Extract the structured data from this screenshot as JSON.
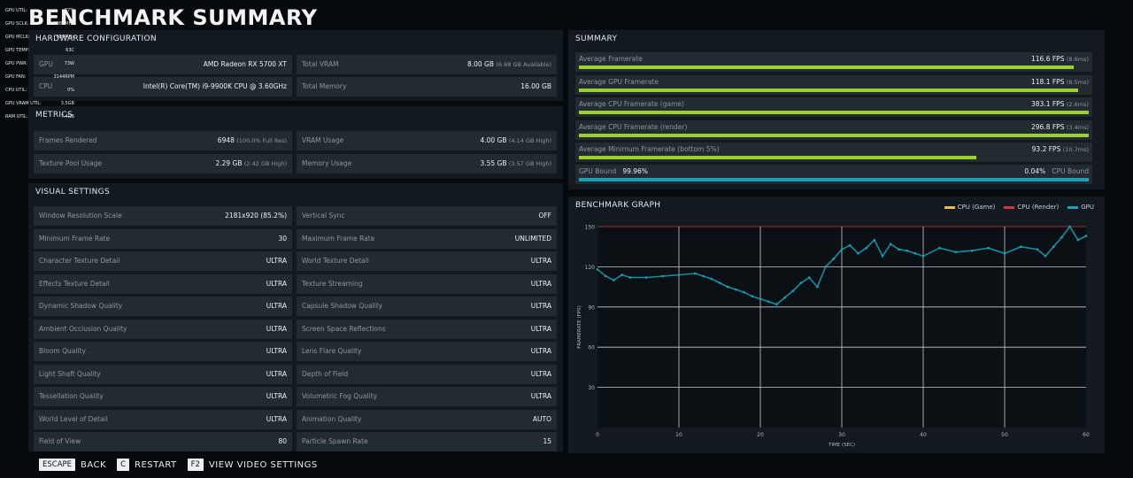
{
  "title": "BENCHMARK SUMMARY",
  "overlay": [
    {
      "label": "GPU UTIL:",
      "value": "87%"
    },
    {
      "label": "GPU SCLK:",
      "value": "1887MHz"
    },
    {
      "label": "GPU MCLK:",
      "value": "880MHz"
    },
    {
      "label": "GPU TEMP:",
      "value": "63C"
    },
    {
      "label": "GPU PWR:",
      "value": "73W"
    },
    {
      "label": "GPU FAN:",
      "value": "3144RPM"
    },
    {
      "label": "CPU UTIL:",
      "value": "0%"
    },
    {
      "label": "GPU VRAM UTIL:",
      "value": "3.5GB"
    },
    {
      "label": "RAM UTIL:",
      "value": "7.4GB"
    }
  ],
  "hardware": {
    "heading": "HARDWARE CONFIGURATION",
    "gpu_label": "GPU",
    "gpu_value": "AMD Radeon RX 5700 XT",
    "cpu_label": "CPU",
    "cpu_value": "Intel(R) Core(TM) i9-9900K CPU @ 3.60GHz",
    "vram_label": "Total VRAM",
    "vram_value": "8.00 GB",
    "vram_note": "(6.68 GB Available)",
    "mem_label": "Total Memory",
    "mem_value": "16.00 GB"
  },
  "metrics": {
    "heading": "METRICS",
    "frames_label": "Frames Rendered",
    "frames_value": "6948",
    "frames_note": "(100.0% Full Res)",
    "pool_label": "Texture Pool Usage",
    "pool_value": "2.29 GB",
    "pool_note": "(2.42 GB High)",
    "vram_label": "VRAM Usage",
    "vram_value": "4.00 GB",
    "vram_note": "(4.14 GB High)",
    "memory_label": "Memory Usage",
    "memory_value": "3.55 GB",
    "memory_note": "(3.57 GB High)"
  },
  "visual": {
    "heading": "VISUAL SETTINGS",
    "left": [
      {
        "label": "Window Resolution Scale",
        "value": "2181x920 (85.2%)"
      },
      {
        "label": "Minimum Frame Rate",
        "value": "30"
      },
      {
        "label": "Character Texture Detail",
        "value": "ULTRA"
      },
      {
        "label": "Effects Texture Detail",
        "value": "ULTRA"
      },
      {
        "label": "Dynamic Shadow Quality",
        "value": "ULTRA"
      },
      {
        "label": "Ambient Occlusion Quality",
        "value": "ULTRA"
      },
      {
        "label": "Bloom Quality",
        "value": "ULTRA"
      },
      {
        "label": "Light Shaft Quality",
        "value": "ULTRA"
      },
      {
        "label": "Tessellation Quality",
        "value": "ULTRA"
      },
      {
        "label": "World Level of Detail",
        "value": "ULTRA"
      },
      {
        "label": "Field of View",
        "value": "80"
      }
    ],
    "right": [
      {
        "label": "Vertical Sync",
        "value": "OFF"
      },
      {
        "label": "Maximum Frame Rate",
        "value": "UNLIMITED"
      },
      {
        "label": "World Texture Detail",
        "value": "ULTRA"
      },
      {
        "label": "Texture Streaming",
        "value": "ULTRA"
      },
      {
        "label": "Capsule Shadow Quality",
        "value": "ULTRA"
      },
      {
        "label": "Screen Space Reflections",
        "value": "ULTRA"
      },
      {
        "label": "Lens Flare Quality",
        "value": "ULTRA"
      },
      {
        "label": "Depth of Field",
        "value": "ULTRA"
      },
      {
        "label": "Volumetric Fog Quality",
        "value": "ULTRA"
      },
      {
        "label": "Animation Quality",
        "value": "AUTO"
      },
      {
        "label": "Particle Spawn Rate",
        "value": "15"
      }
    ]
  },
  "summary": {
    "heading": "SUMMARY",
    "rows": [
      {
        "label": "Average Framerate",
        "value": "116.6 FPS",
        "note": "(8.6ms)",
        "fill": 0.97
      },
      {
        "label": "Average GPU Framerate",
        "value": "118.1 FPS",
        "note": "(8.5ms)",
        "fill": 0.98
      },
      {
        "label": "Average CPU Framerate (game)",
        "value": "383.1 FPS",
        "note": "(2.6ms)",
        "fill": 1.0
      },
      {
        "label": "Average CPU Framerate (render)",
        "value": "296.8 FPS",
        "note": "(3.4ms)",
        "fill": 1.0
      },
      {
        "label": "Average Minimum Framerate (bottom 5%)",
        "value": "93.2 FPS",
        "note": "(10.7ms)",
        "fill": 0.78
      }
    ],
    "bound_left_label": "GPU Bound",
    "bound_left_value": "99.96%",
    "bound_right_value": "0.04%",
    "bound_right_label": "CPU Bound",
    "bound_fill": 0.9996,
    "bar_color": "#9bd12c",
    "bound_color": "#17a3b8"
  },
  "graph": {
    "heading": "BENCHMARK GRAPH",
    "legend": [
      {
        "name": "CPU (Game)",
        "color": "#e8c23a"
      },
      {
        "name": "CPU (Render)",
        "color": "#d8323c"
      },
      {
        "name": "GPU",
        "color": "#17a3b8"
      }
    ]
  },
  "chart_data": {
    "type": "scatter",
    "title": "BENCHMARK GRAPH",
    "xlabel": "TIME (SEC)",
    "ylabel": "FRAMERATE (FPS)",
    "xlim": [
      0,
      60
    ],
    "ylim": [
      0,
      150
    ],
    "xticks": [
      "0",
      "10",
      "20",
      "30",
      "40",
      "50",
      "60"
    ],
    "yticks": [
      "30",
      "60",
      "90",
      "120",
      "150"
    ],
    "grid": true,
    "legend_position": "top-right",
    "series": [
      {
        "name": "GPU",
        "color": "#17a3b8",
        "x": [
          0,
          1,
          2,
          3,
          4,
          6,
          8,
          10,
          12,
          13,
          14,
          15,
          16,
          17,
          18,
          19,
          20,
          21,
          22,
          23,
          24,
          25,
          26,
          27,
          28,
          29,
          30,
          31,
          32,
          33,
          34,
          35,
          36,
          37,
          38,
          39,
          40,
          42,
          44,
          46,
          48,
          50,
          52,
          54,
          55,
          56,
          57,
          58,
          59,
          60
        ],
        "values": [
          118,
          113,
          110,
          114,
          112,
          112,
          113,
          114,
          115,
          113,
          111,
          108,
          105,
          103,
          101,
          98,
          96,
          94,
          92,
          97,
          102,
          108,
          112,
          105,
          120,
          126,
          133,
          136,
          130,
          134,
          140,
          128,
          137,
          133,
          132,
          130,
          128,
          134,
          131,
          132,
          134,
          130,
          135,
          133,
          128,
          135,
          142,
          150,
          140,
          143
        ]
      }
    ]
  },
  "footer": [
    {
      "key": "ESCAPE",
      "action": "BACK"
    },
    {
      "key": "C",
      "action": "RESTART"
    },
    {
      "key": "F2",
      "action": "VIEW VIDEO SETTINGS"
    }
  ]
}
